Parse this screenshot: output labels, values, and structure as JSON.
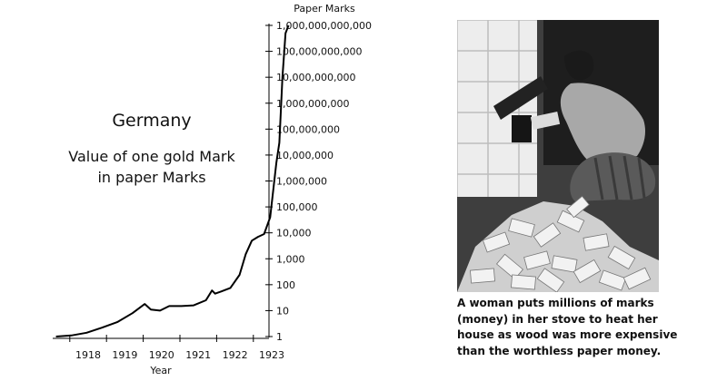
{
  "chart_data": {
    "type": "line",
    "title_lines": [
      "Germany",
      "Value of one gold Mark",
      "in paper Marks"
    ],
    "xlabel": "Year",
    "ylabel": "Paper Marks",
    "x_ticks": [
      "1918",
      "1919",
      "1920",
      "1921",
      "1922",
      "1923"
    ],
    "y_scale": "log",
    "y_ticks": [
      "1",
      "10",
      "100",
      "1,000",
      "10,000",
      "100,000",
      "1,000,000",
      "10,000,000",
      "100,000,000",
      "1,000,000,000",
      "10,000,000,000",
      "100,000,000,000",
      "1,000,000,000,000"
    ],
    "ylim": [
      1,
      1000000000000
    ],
    "grid": false,
    "series": [
      {
        "color": "#000000",
        "points": [
          [
            "1917-08",
            1.0
          ],
          [
            "1918-01",
            1.1
          ],
          [
            "1918-06",
            1.4
          ],
          [
            "1918-11",
            2.2
          ],
          [
            "1919-04",
            3.6
          ],
          [
            "1919-09",
            8
          ],
          [
            "1920-01",
            18
          ],
          [
            "1920-03",
            11
          ],
          [
            "1920-06",
            10
          ],
          [
            "1920-09",
            15
          ],
          [
            "1921-01",
            15
          ],
          [
            "1921-05",
            16
          ],
          [
            "1921-09",
            25
          ],
          [
            "1921-11",
            60
          ],
          [
            "1921-12",
            45
          ],
          [
            "1922-02",
            55
          ],
          [
            "1922-05",
            75
          ],
          [
            "1922-08",
            240
          ],
          [
            "1922-10",
            1500
          ],
          [
            "1922-12",
            5000
          ],
          [
            "1923-02",
            7000
          ],
          [
            "1923-04",
            9000
          ],
          [
            "1923-06",
            40000
          ],
          [
            "1923-08",
            5000000
          ],
          [
            "1923-09",
            30000000
          ],
          [
            "1923-10",
            10000000000
          ],
          [
            "1923-11",
            500000000000
          ],
          [
            "1923-12",
            1000000000000
          ]
        ]
      }
    ]
  },
  "photo": {
    "description": "woman-kneeling-by-stove-with-banknotes",
    "caption_lines": [
      "A woman puts millions of marks",
      "(money) in her stove to heat her",
      "house as wood was more expensive",
      "than the worthless paper money."
    ]
  }
}
